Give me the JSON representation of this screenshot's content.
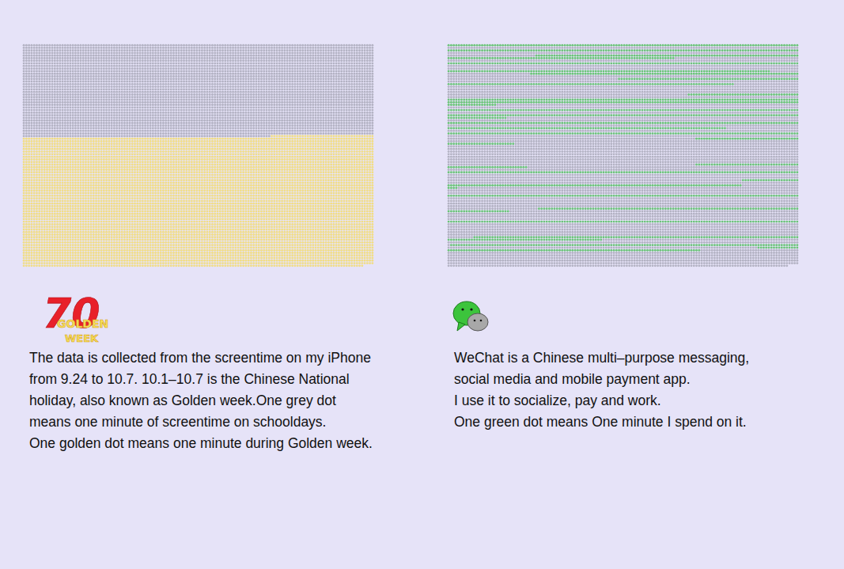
{
  "chart_data": [
    {
      "type": "waffle",
      "icon_text": [
        "70",
        "GOLDEN",
        "WEEK"
      ],
      "caption": [
        "The data is collected from the screentime on my iPhone",
        "from 9.24 to 10.7. 10.1–10.7 is the Chinese National",
        "holiday, also known as Golden week.One grey dot",
        "means one minute of screentime on schooldays.",
        "One golden dot means one minute during Golden week."
      ],
      "series": [
        {
          "color": "#b3b2c3",
          "values": [
            4856
          ]
        },
        {
          "color": "#f1dd86",
          "values": [
            6836
          ]
        }
      ]
    },
    {
      "type": "waffle",
      "caption": [
        "WeChat is a Chinese multi–purpose messaging,",
        "social media and mobile payment app.",
        "I use it to socialize, pay and work.",
        "One green dot means One minute I spend on it."
      ],
      "color": "#b3b2c3",
      "series": [
        {
          "color": "#6cc47a",
          "runs": [
            {
              "row": 0,
              "from": 0,
              "to": 136
            },
            {
              "row": 2,
              "from": 0,
              "to": 136
            },
            {
              "row": 4,
              "from": 34,
              "to": 136
            },
            {
              "row": 5,
              "from": 0,
              "to": 88
            },
            {
              "row": 7,
              "from": 0,
              "to": 136
            },
            {
              "row": 10,
              "from": 0,
              "to": 125
            },
            {
              "row": 11,
              "from": 32,
              "to": 136
            },
            {
              "row": 13,
              "from": 66,
              "to": 136
            },
            {
              "row": 15,
              "from": 0,
              "to": 111
            },
            {
              "row": 19,
              "from": 93,
              "to": 136
            },
            {
              "row": 21,
              "from": 0,
              "to": 136
            },
            {
              "row": 22,
              "from": 0,
              "to": 136
            },
            {
              "row": 23,
              "from": 0,
              "to": 19
            },
            {
              "row": 25,
              "from": 0,
              "to": 136
            },
            {
              "row": 27,
              "from": 0,
              "to": 136
            },
            {
              "row": 28,
              "from": 0,
              "to": 23
            },
            {
              "row": 30,
              "from": 0,
              "to": 136
            },
            {
              "row": 32,
              "from": 0,
              "to": 108
            },
            {
              "row": 34,
              "from": 0,
              "to": 136
            },
            {
              "row": 36,
              "from": 96,
              "to": 136
            },
            {
              "row": 38,
              "from": 0,
              "to": 26
            },
            {
              "row": 46,
              "from": 96,
              "to": 136
            },
            {
              "row": 47,
              "from": 0,
              "to": 31
            },
            {
              "row": 49,
              "from": 0,
              "to": 136
            },
            {
              "row": 52,
              "from": 114,
              "to": 136
            },
            {
              "row": 54,
              "from": 0,
              "to": 114
            },
            {
              "row": 55,
              "from": 0,
              "to": 4
            },
            {
              "row": 58,
              "from": 0,
              "to": 136
            },
            {
              "row": 63,
              "from": 35,
              "to": 136
            },
            {
              "row": 64,
              "from": 0,
              "to": 24
            },
            {
              "row": 68,
              "from": 0,
              "to": 136
            },
            {
              "row": 74,
              "from": 10,
              "to": 136
            },
            {
              "row": 75,
              "from": 0,
              "to": 60
            },
            {
              "row": 77,
              "from": 1,
              "to": 136
            },
            {
              "row": 78,
              "from": 120,
              "to": 136
            },
            {
              "row": 79,
              "from": 0,
              "to": 98
            }
          ]
        }
      ]
    }
  ]
}
